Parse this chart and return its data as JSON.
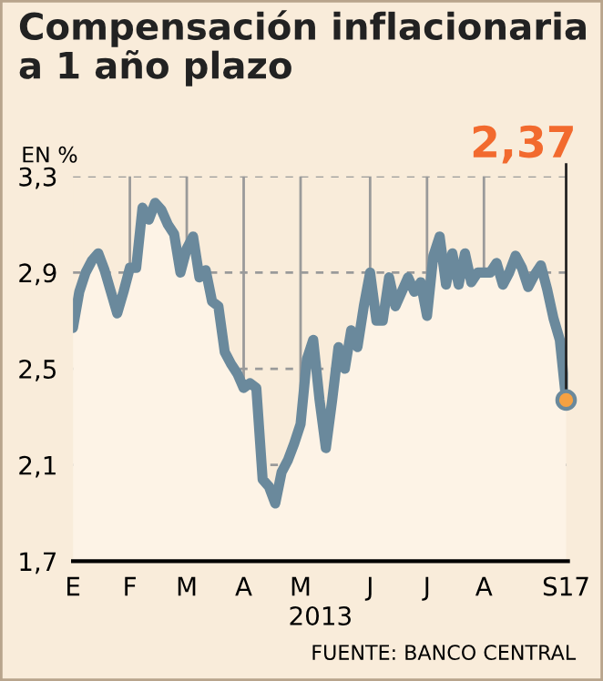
{
  "chart_data": {
    "type": "area",
    "title": "Compensación inflacionaria\na 1 año plazo",
    "ylabel": "EN %",
    "xlabel": "2013",
    "categories": [
      "E",
      null,
      null,
      null,
      null,
      null,
      null,
      null,
      null,
      "F",
      null,
      null,
      null,
      null,
      null,
      null,
      null,
      null,
      "M",
      null,
      null,
      null,
      null,
      null,
      null,
      null,
      null,
      "A",
      null,
      null,
      null,
      null,
      null,
      null,
      null,
      null,
      "M",
      null,
      null,
      null,
      null,
      null,
      null,
      null,
      null,
      null,
      null,
      "J",
      null,
      null,
      null,
      null,
      null,
      null,
      null,
      null,
      "J",
      null,
      null,
      null,
      null,
      null,
      null,
      null,
      null,
      "A",
      null,
      null,
      null,
      null,
      null,
      null,
      null,
      null,
      null,
      null,
      null,
      null,
      "S17"
    ],
    "series": [
      {
        "color": "#6a899c",
        "values": [
          2.67,
          2.82,
          2.9,
          2.95,
          2.98,
          2.91,
          2.82,
          2.73,
          2.82,
          2.92,
          2.92,
          3.17,
          3.12,
          3.19,
          3.16,
          3.1,
          3.06,
          2.9,
          3.0,
          3.05,
          2.88,
          2.91,
          2.78,
          2.76,
          2.57,
          2.52,
          2.48,
          2.42,
          2.44,
          2.42,
          2.04,
          2.01,
          1.94,
          2.07,
          2.12,
          2.19,
          2.27,
          2.54,
          2.62,
          2.37,
          2.17,
          2.37,
          2.59,
          2.5,
          2.66,
          2.59,
          2.76,
          2.9,
          2.7,
          2.7,
          2.88,
          2.76,
          2.82,
          2.88,
          2.82,
          2.86,
          2.72,
          2.97,
          3.05,
          2.85,
          2.98,
          2.85,
          2.98,
          2.86,
          2.9,
          2.9,
          2.9,
          2.94,
          2.85,
          2.9,
          2.97,
          2.92,
          2.84,
          2.89,
          2.93,
          2.83,
          2.71,
          2.62,
          2.37
        ]
      }
    ],
    "ylim": [
      1.7,
      3.3
    ],
    "yticks": [
      {
        "value": 1.7,
        "label": "1,7"
      },
      {
        "value": 2.1,
        "label": "2,1"
      },
      {
        "value": 2.5,
        "label": "2,5"
      },
      {
        "value": 2.9,
        "label": "2,9"
      },
      {
        "value": 3.3,
        "label": "3,3"
      }
    ],
    "grid": true,
    "marker": "none",
    "line_style": "solid",
    "annotations": [
      {
        "text": "2,37",
        "x": "S17",
        "y": 2.37
      },
      "FUENTE: BANCO CENTRAL"
    ]
  }
}
